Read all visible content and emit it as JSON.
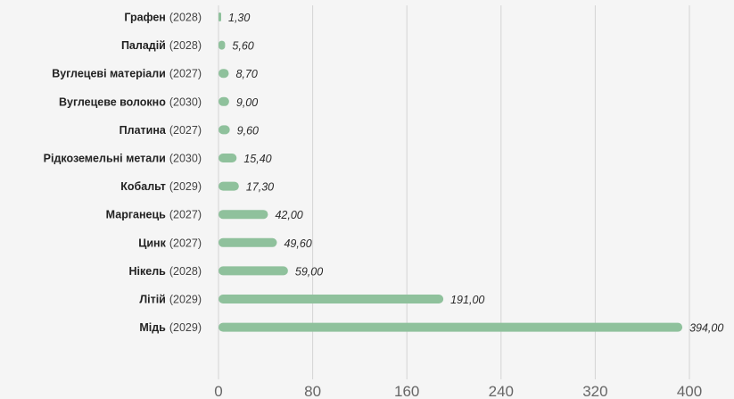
{
  "chart_data": {
    "type": "bar",
    "orientation": "horizontal",
    "categories": [
      {
        "name": "Графен",
        "year": "(2028)"
      },
      {
        "name": "Паладій",
        "year": "(2028)"
      },
      {
        "name": "Вуглецеві матеріали",
        "year": "(2027)"
      },
      {
        "name": "Вуглецеве волокно",
        "year": "(2030)"
      },
      {
        "name": "Платина",
        "year": "(2027)"
      },
      {
        "name": "Рідкоземельні метали",
        "year": "(2030)"
      },
      {
        "name": "Кобальт",
        "year": "(2029)"
      },
      {
        "name": "Марганець",
        "year": "(2027)"
      },
      {
        "name": "Цинк",
        "year": "(2027)"
      },
      {
        "name": "Нікель",
        "year": "(2028)"
      },
      {
        "name": "Літій",
        "year": "(2029)"
      },
      {
        "name": "Мідь",
        "year": "(2029)"
      }
    ],
    "values": [
      1.3,
      5.6,
      8.7,
      9.0,
      9.6,
      15.4,
      17.3,
      42.0,
      49.6,
      59.0,
      191.0,
      394.0
    ],
    "value_labels": [
      "1,30",
      "5,60",
      "8,70",
      "9,00",
      "9,60",
      "15,40",
      "17,30",
      "42,00",
      "49,60",
      "59,00",
      "191,00",
      "394,00"
    ],
    "xlim": [
      0,
      400
    ],
    "x_ticks": [
      "0",
      "80",
      "160",
      "240",
      "320",
      "400"
    ],
    "x_tick_values": [
      0,
      80,
      160,
      240,
      320,
      400
    ],
    "grid": "vertical",
    "title": "",
    "xlabel": "",
    "ylabel": "",
    "colors": {
      "bar": "#8fc19c",
      "grid": "#d4d4d4",
      "background": "#f5f5f5"
    }
  }
}
